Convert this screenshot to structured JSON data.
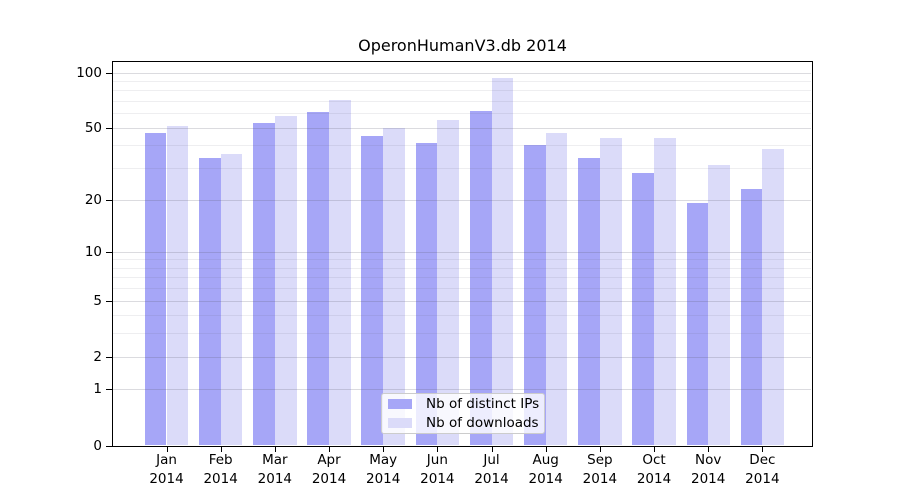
{
  "title": "OperonHumanV3.db 2014",
  "colors": {
    "background": "#ffffff",
    "bar_distinct_ips": "#a6a6f7",
    "bar_downloads": "#dbdbf9",
    "axis": "#000000",
    "grid_major": "rgba(90,90,110,0.22)",
    "grid_minor": "rgba(90,90,110,0.10)",
    "legend_border": "#cccccc",
    "text": "#000000"
  },
  "legend": {
    "position": "lower center",
    "items": [
      {
        "label": "Nb of distinct IPs",
        "color": "#a6a6f7"
      },
      {
        "label": "Nb of downloads",
        "color": "#dbdbf9"
      }
    ]
  },
  "axes": {
    "y_major_tick_labels": [
      "100",
      "50",
      "20",
      "10",
      "5",
      "2",
      "1",
      "0"
    ],
    "x_tick_line2": "2014"
  },
  "chart_data": {
    "type": "bar",
    "title": "OperonHumanV3.db 2014",
    "categories": [
      "Jan 2014",
      "Feb 2014",
      "Mar 2014",
      "Apr 2014",
      "May 2014",
      "Jun 2014",
      "Jul 2014",
      "Aug 2014",
      "Sep 2014",
      "Oct 2014",
      "Nov 2014",
      "Dec 2014"
    ],
    "categories_line1": [
      "Jan",
      "Feb",
      "Mar",
      "Apr",
      "May",
      "Jun",
      "Jul",
      "Aug",
      "Sep",
      "Oct",
      "Nov",
      "Dec"
    ],
    "series": [
      {
        "name": "Nb of distinct IPs",
        "color": "#a6a6f7",
        "values": [
          47,
          34,
          53,
          61,
          45,
          41,
          62,
          40,
          34,
          28,
          19,
          23
        ]
      },
      {
        "name": "Nb of downloads",
        "color": "#dbdbf9",
        "values": [
          51,
          36,
          58,
          71,
          50,
          55,
          94,
          47,
          44,
          44,
          31,
          38
        ]
      }
    ],
    "yscale": "log1p",
    "ylim": [
      0,
      113
    ],
    "y_major_ticks": [
      100,
      50,
      20,
      10,
      5,
      2,
      1,
      0
    ],
    "y_minor_ticks": [
      3,
      4,
      6,
      7,
      8,
      9,
      30,
      40,
      60,
      70,
      80,
      90
    ],
    "grid": true,
    "legend_position": "lower center"
  }
}
